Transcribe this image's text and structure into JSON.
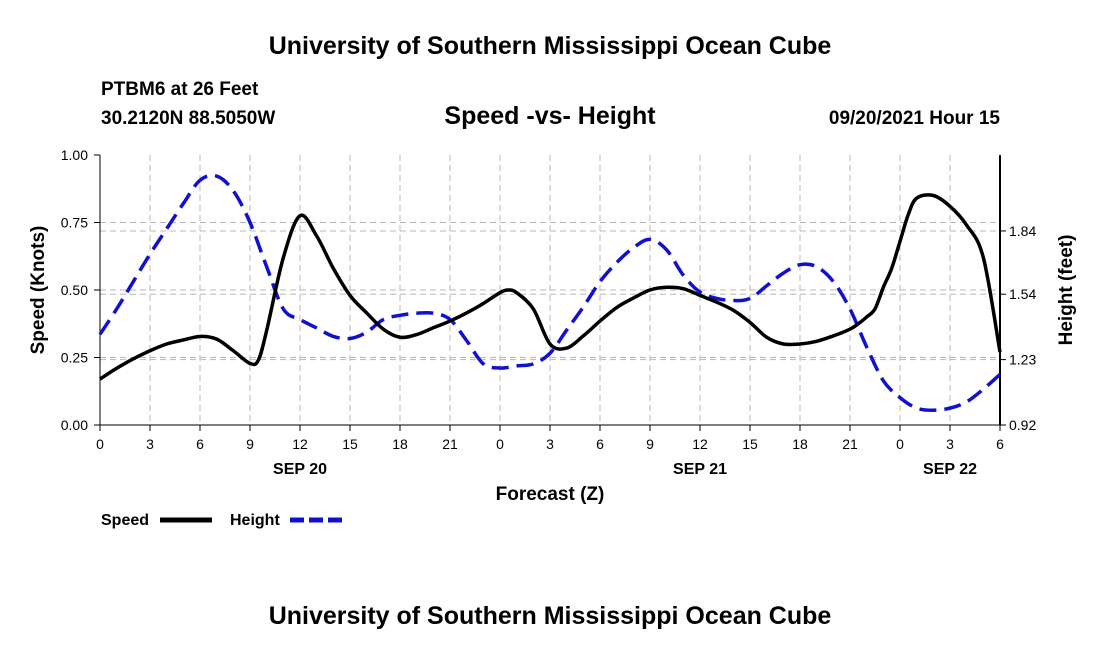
{
  "page": {
    "title_top": "University of Southern Mississippi Ocean Cube",
    "title_bottom": "University of Southern Mississippi Ocean Cube",
    "station": "PTBM6 at 26 Feet",
    "coords": "30.2120N  88.5050W",
    "subtitle": "Speed -vs- Height",
    "datetime": "09/20/2021 Hour 15"
  },
  "colors": {
    "speed": "#000000",
    "height": "#1010d0",
    "grid": "#b8b8b8"
  },
  "chart_data": {
    "type": "line",
    "title": "Speed -vs- Height",
    "xlabel": "Forecast (Z)",
    "ylabel": "Speed (Knots)",
    "y2label": "Height (feet)",
    "x_range_hours": [
      0,
      54
    ],
    "ylim": [
      0,
      1
    ],
    "y2lim": [
      0.92,
      2.2
    ],
    "x_ticks": [
      {
        "h": 0,
        "label": "0"
      },
      {
        "h": 3,
        "label": "3"
      },
      {
        "h": 6,
        "label": "6"
      },
      {
        "h": 9,
        "label": "9"
      },
      {
        "h": 12,
        "label": "12"
      },
      {
        "h": 15,
        "label": "15"
      },
      {
        "h": 18,
        "label": "18"
      },
      {
        "h": 21,
        "label": "21"
      },
      {
        "h": 24,
        "label": "0"
      },
      {
        "h": 27,
        "label": "3"
      },
      {
        "h": 30,
        "label": "6"
      },
      {
        "h": 33,
        "label": "9"
      },
      {
        "h": 36,
        "label": "12"
      },
      {
        "h": 39,
        "label": "15"
      },
      {
        "h": 42,
        "label": "18"
      },
      {
        "h": 45,
        "label": "21"
      },
      {
        "h": 48,
        "label": "0"
      },
      {
        "h": 51,
        "label": "3"
      },
      {
        "h": 54,
        "label": "6"
      }
    ],
    "y_ticks": [
      {
        "v": 0.0,
        "label": "0.00"
      },
      {
        "v": 0.25,
        "label": "0.25"
      },
      {
        "v": 0.5,
        "label": "0.50"
      },
      {
        "v": 0.75,
        "label": "0.75"
      },
      {
        "v": 1.0,
        "label": "1.00"
      }
    ],
    "y2_ticks": [
      {
        "v": 0.92,
        "label": "0.92"
      },
      {
        "v": 1.23,
        "label": "1.23"
      },
      {
        "v": 1.54,
        "label": "1.54"
      },
      {
        "v": 1.84,
        "label": "1.84"
      }
    ],
    "day_labels": [
      {
        "h": 12,
        "label": "SEP 20"
      },
      {
        "h": 36,
        "label": "SEP 21"
      },
      {
        "h": 51,
        "label": "SEP 22"
      }
    ],
    "legend": [
      {
        "name": "Speed",
        "style": "solid"
      },
      {
        "name": "Height",
        "style": "dashed"
      }
    ],
    "series": [
      {
        "name": "Speed",
        "axis": "left",
        "style": "solid",
        "x": [
          0,
          1,
          2,
          3,
          4,
          5,
          6,
          7,
          8,
          9,
          9.5,
          10,
          11,
          12,
          13,
          14,
          15,
          16,
          17,
          18,
          19,
          20,
          21,
          22,
          23,
          24,
          24.5,
          25,
          26,
          27,
          28,
          29,
          30,
          31,
          32,
          33,
          34,
          35,
          36,
          37,
          38,
          39,
          40,
          41,
          42,
          43,
          44,
          45,
          45.5,
          46,
          46.5,
          47,
          47.5,
          48,
          48.5,
          49,
          50,
          51,
          52,
          53,
          54
        ],
        "values": [
          0.17,
          0.21,
          0.245,
          0.275,
          0.3,
          0.315,
          0.328,
          0.318,
          0.275,
          0.228,
          0.24,
          0.35,
          0.62,
          0.775,
          0.7,
          0.58,
          0.48,
          0.415,
          0.355,
          0.325,
          0.335,
          0.36,
          0.385,
          0.415,
          0.45,
          0.49,
          0.5,
          0.49,
          0.43,
          0.3,
          0.285,
          0.33,
          0.385,
          0.435,
          0.47,
          0.5,
          0.51,
          0.505,
          0.48,
          0.455,
          0.425,
          0.38,
          0.325,
          0.3,
          0.3,
          0.31,
          0.33,
          0.355,
          0.375,
          0.4,
          0.43,
          0.51,
          0.58,
          0.68,
          0.78,
          0.84,
          0.85,
          0.81,
          0.74,
          0.62,
          0.27
        ]
      },
      {
        "name": "Height",
        "axis": "right",
        "style": "dashed",
        "x": [
          0,
          1,
          2,
          3,
          4,
          5,
          6,
          7,
          8,
          9,
          10,
          11,
          12,
          13,
          14,
          15,
          16,
          17,
          18,
          19,
          20,
          21,
          22,
          23,
          24,
          25,
          26,
          27,
          28,
          29,
          30,
          31,
          32,
          33,
          34,
          35,
          36,
          37,
          38,
          39,
          40,
          41,
          42,
          43,
          44,
          45,
          46,
          47,
          48,
          49,
          50,
          51,
          52,
          53,
          54
        ],
        "values": [
          1.35,
          1.47,
          1.6,
          1.73,
          1.85,
          1.97,
          2.08,
          2.1,
          2.03,
          1.88,
          1.67,
          1.47,
          1.42,
          1.38,
          1.34,
          1.33,
          1.36,
          1.42,
          1.44,
          1.45,
          1.45,
          1.42,
          1.32,
          1.21,
          1.19,
          1.2,
          1.21,
          1.26,
          1.37,
          1.48,
          1.6,
          1.69,
          1.76,
          1.8,
          1.75,
          1.63,
          1.55,
          1.52,
          1.51,
          1.52,
          1.58,
          1.64,
          1.68,
          1.67,
          1.6,
          1.47,
          1.29,
          1.13,
          1.05,
          1.0,
          0.99,
          1.0,
          1.03,
          1.09,
          1.16
        ]
      }
    ]
  }
}
